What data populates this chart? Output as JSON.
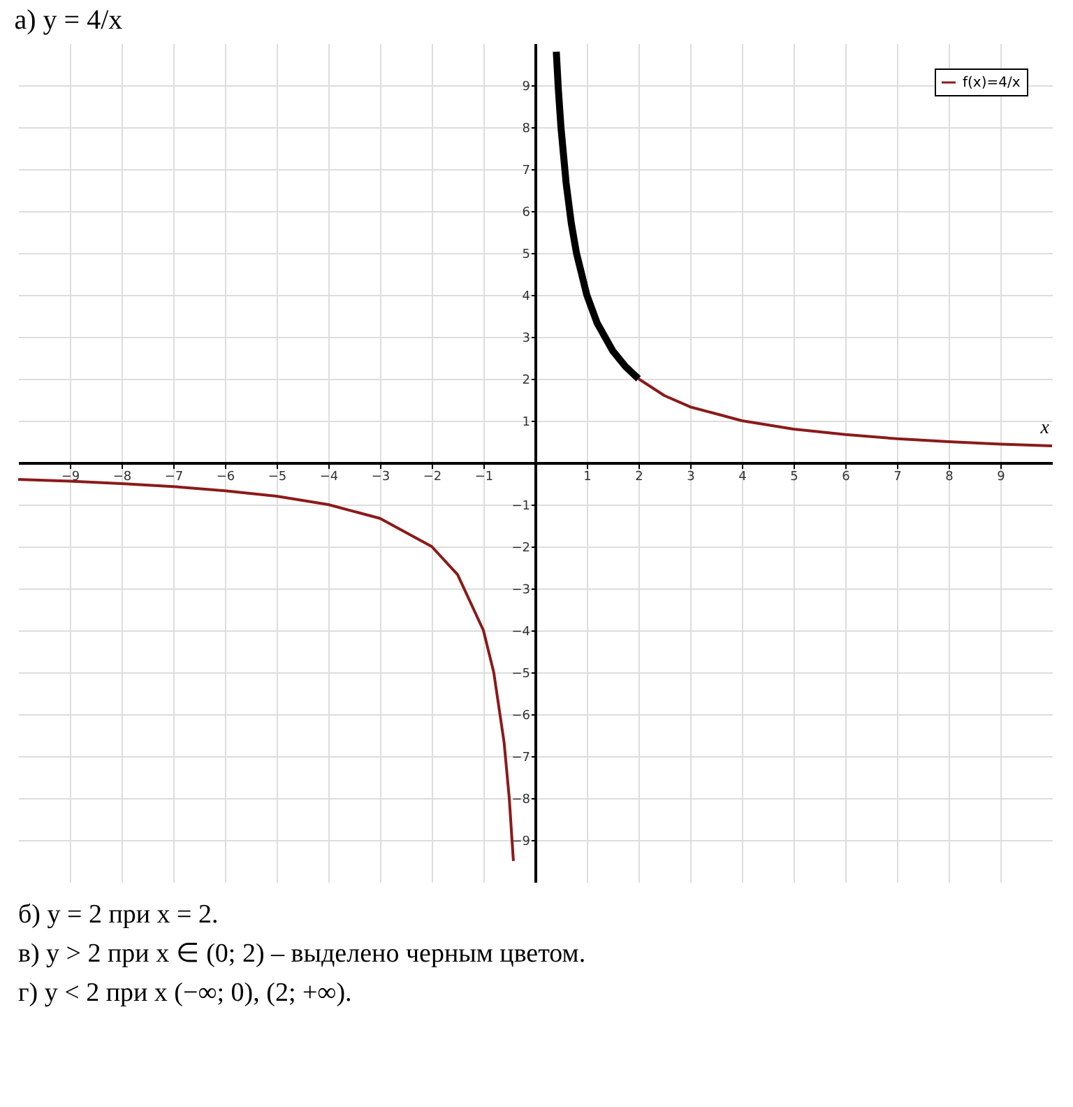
{
  "chart_data": {
    "type": "line",
    "title": "а) y = 4/x",
    "xlabel": "x",
    "series": [
      {
        "name": "f(x)=4/x",
        "color": "#8b1a1a",
        "x": [
          -10,
          -9,
          -8,
          -7,
          -6,
          -5,
          -4,
          -3,
          -2,
          -1.5,
          -1,
          -0.8,
          -0.6,
          -0.5,
          -0.42,
          null,
          2,
          2.5,
          3,
          4,
          5,
          6,
          7,
          8,
          9,
          10
        ],
        "values": [
          -0.4,
          -0.44,
          -0.5,
          -0.57,
          -0.67,
          -0.8,
          -1,
          -1.33,
          -2,
          -2.67,
          -4,
          -5,
          -6.67,
          -8,
          -9.5,
          null,
          2,
          1.6,
          1.33,
          1,
          0.8,
          0.67,
          0.57,
          0.5,
          0.44,
          0.4
        ]
      },
      {
        "color": "#000000",
        "x": [
          0.41,
          0.45,
          0.5,
          0.6,
          0.7,
          0.8,
          1,
          1.2,
          1.5,
          1.75,
          2
        ],
        "values": [
          9.8,
          8.9,
          8,
          6.67,
          5.71,
          5,
          4,
          3.33,
          2.67,
          2.29,
          2
        ]
      }
    ],
    "xlim": [
      -10,
      10
    ],
    "ylim": [
      -10,
      10
    ],
    "xticks": [
      -9,
      -8,
      -7,
      -6,
      -5,
      -4,
      -3,
      -2,
      -1,
      1,
      2,
      3,
      4,
      5,
      6,
      7,
      8,
      9
    ],
    "yticks": [
      -9,
      -8,
      -7,
      -6,
      -5,
      -4,
      -3,
      -2,
      -1,
      1,
      2,
      3,
      4,
      5,
      6,
      7,
      8,
      9
    ],
    "grid": true,
    "legend": "top right",
    "marker": "none",
    "line_style": "solid",
    "annotations": [
      "б) y = 2 при x = 2.",
      "в) y > 2 при x ∈ (0; 2) – выделено черным цветом.",
      "г) y < 2 при x (−∞; 0), (2; +∞)."
    ]
  }
}
